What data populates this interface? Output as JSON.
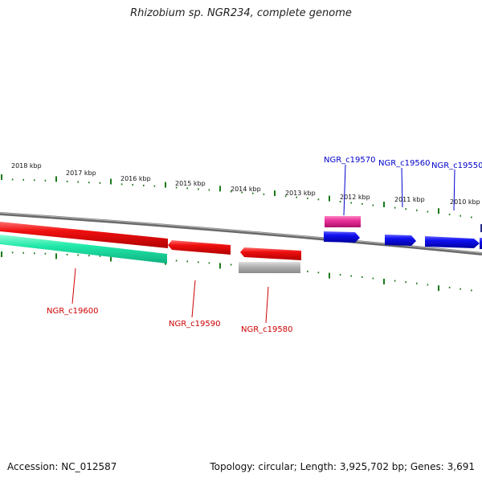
{
  "title": "Rhizobium sp. NGR234, complete genome",
  "footer": {
    "accession": "Accession: NC_012587",
    "summary": "Topology: circular; Length: 3,925,702 bp; Genes: 3,691"
  },
  "scale_labels": [
    "2018 kbp",
    "2017 kbp",
    "2016 kbp",
    "2015 kbp",
    "2014 kbp",
    "2013 kbp",
    "2012 kbp",
    "2011 kbp",
    "2010 kbp"
  ],
  "gene_labels": {
    "top": [
      "NGR_c19570",
      "NGR_c19560",
      "NGR_c19550"
    ],
    "bottom": [
      "NGR_c19600",
      "NGR_c19590",
      "NGR_c19580"
    ]
  },
  "colors": {
    "forward_gene": "#1010e0",
    "reverse_gene": "#e01010",
    "forward_label": "#0000cc",
    "reverse_label": "#cc0000",
    "pink_feature": "#e0308c",
    "green_feature": "#20e0a0",
    "gray_feature": "#a8a8a8",
    "backbone": "#808080",
    "tick": "#1a7a1a"
  }
}
